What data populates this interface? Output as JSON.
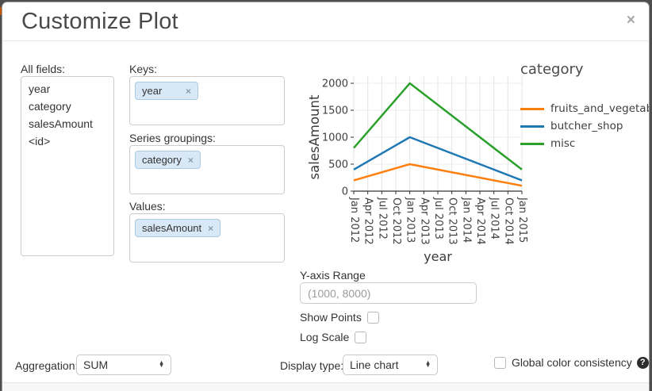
{
  "dialog": {
    "title": "Customize Plot",
    "close_glyph": "×"
  },
  "fields_panel": {
    "label": "All fields:",
    "items": [
      "year",
      "category",
      "salesAmount",
      "<id>"
    ]
  },
  "droppables": {
    "keys": {
      "label": "Keys:",
      "pills": [
        "year"
      ]
    },
    "series_groupings": {
      "label": "Series groupings:",
      "pills": [
        "category"
      ]
    },
    "values": {
      "label": "Values:",
      "pills": [
        "salesAmount"
      ]
    }
  },
  "pill_remove_glyph": "×",
  "chart_data": {
    "type": "line",
    "xlabel": "year",
    "ylabel": "salesAmount",
    "legend_title": "category",
    "legend_position": "right",
    "grid": true,
    "ylim": [
      0,
      2000
    ],
    "y_ticks": [
      0,
      500,
      1000,
      1500,
      2000
    ],
    "x_tick_labels": [
      "Jan 2012",
      "Apr 2012",
      "Jul 2012",
      "Oct 2012",
      "Jan 2013",
      "Apr 2013",
      "Jul 2013",
      "Oct 2013",
      "Jan 2014",
      "Apr 2014",
      "Jul 2014",
      "Oct 2014",
      "Jan 2015"
    ],
    "series": [
      {
        "name": "fruits_and_vegetables",
        "color": "#ff7f0e",
        "x": [
          "Jan 2012",
          "Jan 2013",
          "Jan 2015"
        ],
        "values": [
          200,
          500,
          100
        ]
      },
      {
        "name": "butcher_shop",
        "color": "#1f77b4",
        "x": [
          "Jan 2012",
          "Jan 2013",
          "Jan 2015"
        ],
        "values": [
          400,
          1000,
          200
        ]
      },
      {
        "name": "misc",
        "color": "#2ca02c",
        "x": [
          "Jan 2012",
          "Jan 2013",
          "Jan 2015"
        ],
        "values": [
          800,
          2000,
          400
        ]
      }
    ]
  },
  "y_axis_range": {
    "label": "Y-axis Range",
    "value": "",
    "placeholder": "(1000, 8000)"
  },
  "options": {
    "show_points": {
      "label": "Show Points",
      "checked": false
    },
    "log_scale": {
      "label": "Log Scale",
      "checked": false
    }
  },
  "bottom_bar": {
    "aggregation": {
      "label": "Aggregation:",
      "selected": "SUM"
    },
    "display_type": {
      "label": "Display type:",
      "selected": "Line chart"
    },
    "global_color": {
      "label": "Global color consistency",
      "checked": false,
      "help_glyph": "?"
    }
  }
}
